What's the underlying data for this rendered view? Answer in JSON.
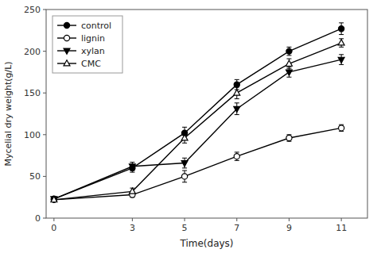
{
  "chart_data": {
    "type": "line",
    "x_label": "Time(days)",
    "y_label": "Mycelial dry weight(g/L)",
    "x": [
      0,
      3,
      5,
      7,
      9,
      11
    ],
    "series": [
      {
        "name": "control",
        "values": [
          23,
          60,
          102,
          160,
          200,
          227
        ],
        "errors": [
          2,
          5,
          7,
          6,
          5,
          7
        ],
        "color": "black",
        "marker": "circle",
        "line_style": "solid"
      },
      {
        "name": "lignin",
        "values": [
          22,
          28,
          50,
          74,
          96,
          108
        ],
        "errors": [
          2,
          3,
          7,
          5,
          4,
          4
        ],
        "color": "black",
        "marker": "circle-open",
        "line_style": "solid"
      },
      {
        "name": "xylan",
        "values": [
          23,
          62,
          66,
          131,
          175,
          190
        ],
        "errors": [
          2,
          5,
          6,
          7,
          6,
          6
        ],
        "color": "black",
        "marker": "triangle-down",
        "line_style": "solid"
      },
      {
        "name": "CMC",
        "values": [
          22,
          32,
          96,
          150,
          185,
          210
        ],
        "errors": [
          2,
          4,
          6,
          7,
          6,
          5
        ],
        "color": "black",
        "marker": "triangle-up-open",
        "line_style": "solid"
      }
    ],
    "xlim": [
      -0.3,
      12.0
    ],
    "ylim": [
      0,
      250
    ],
    "xticks": [
      0,
      3,
      5,
      7,
      9,
      11
    ],
    "yticks": [
      0,
      50,
      100,
      150,
      200,
      250
    ],
    "legend": "upper left",
    "grid": false
  }
}
